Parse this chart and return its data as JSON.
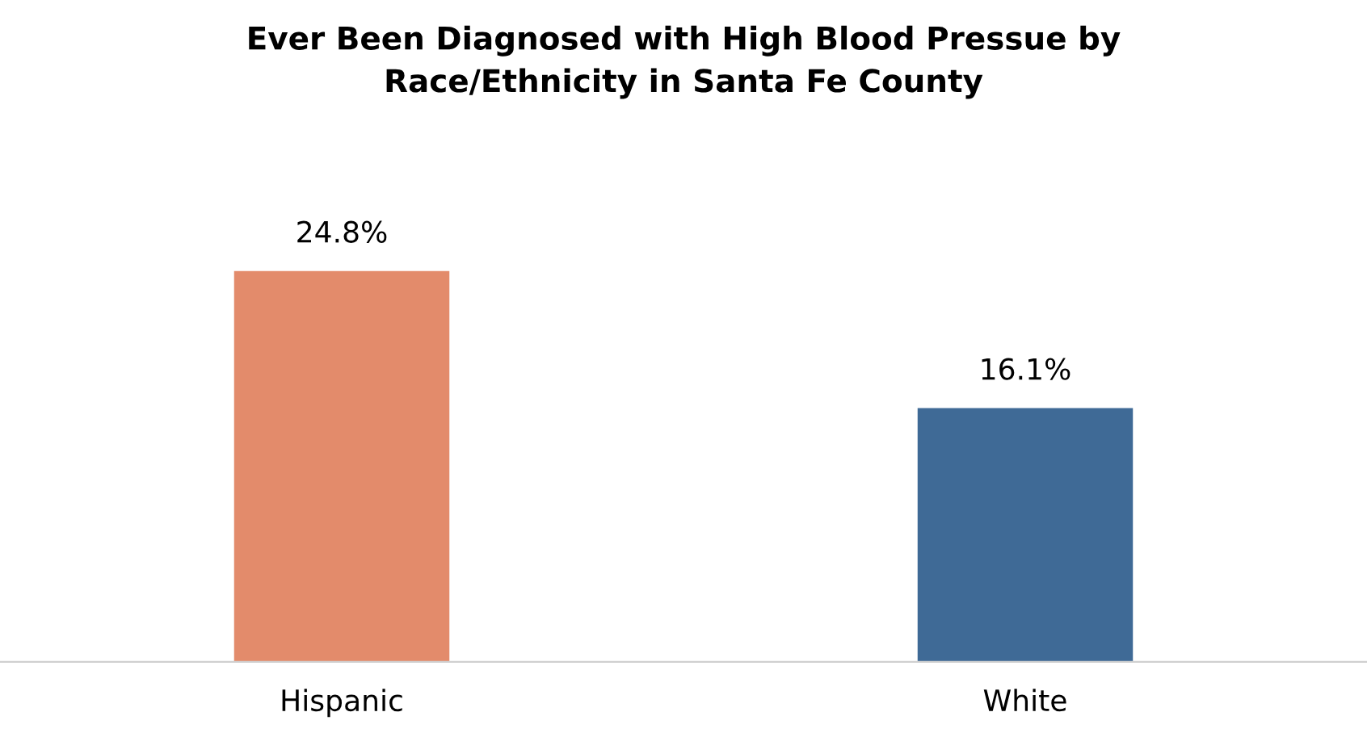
{
  "chart_data": {
    "type": "bar",
    "title": "Ever Been Diagnosed with High Blood Pressue by\nRace/Ethnicity in Santa Fe County",
    "categories": [
      "Hispanic",
      "White"
    ],
    "values": [
      24.8,
      16.1
    ],
    "colors": [
      "#e38b6b",
      "#3f6a96"
    ],
    "value_labels": [
      "24.8%",
      "16.1%"
    ],
    "grid": false,
    "legend": false
  }
}
